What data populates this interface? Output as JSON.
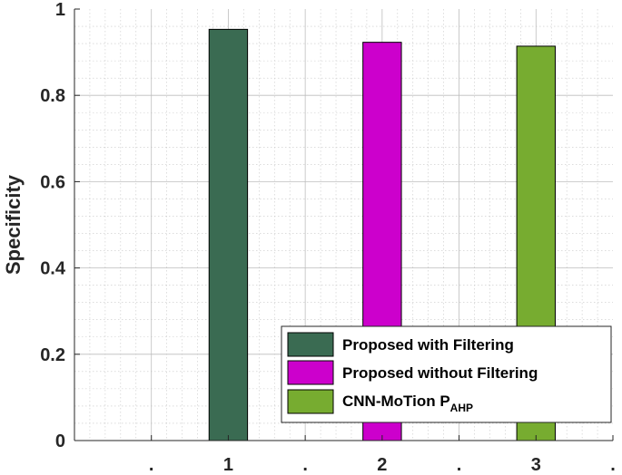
{
  "chart_data": {
    "type": "bar",
    "ylabel": "Specificity",
    "ylim": [
      0,
      1
    ],
    "yticks": [
      "0",
      "0.2",
      "0.4",
      "0.6",
      "0.8",
      "1"
    ],
    "xlim": [
      0,
      3.5
    ],
    "xtick_labels": [
      ".",
      "1",
      ".",
      "2",
      ".",
      "3",
      "."
    ],
    "grid": true,
    "legend_position": "bottom-right",
    "series": [
      {
        "name": "Proposed with Filtering",
        "x": 1,
        "value": 0.953,
        "color": "#3a6b52"
      },
      {
        "name": "Proposed without Filtering",
        "x": 2,
        "value": 0.923,
        "color": "#cc00cc"
      },
      {
        "name": "CNN-MoTion P",
        "name_subscript": "AHP",
        "x": 3,
        "value": 0.914,
        "color": "#77ac30"
      }
    ]
  }
}
